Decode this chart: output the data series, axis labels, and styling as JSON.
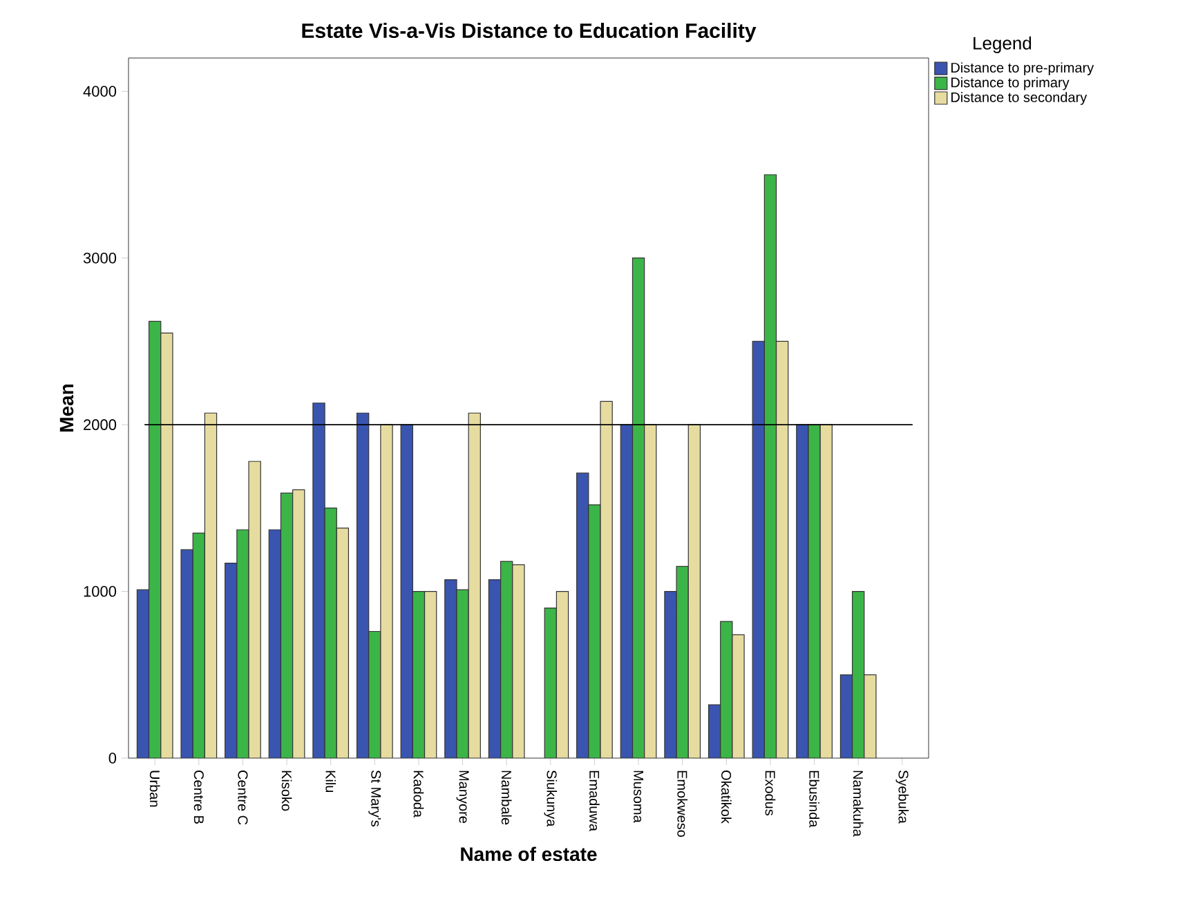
{
  "chart_data": {
    "type": "bar",
    "title": "Estate Vis-a-Vis Distance to Education Facility",
    "xlabel": "Name of estate",
    "ylabel": "Mean",
    "legend_title": "Legend",
    "legend": "top right",
    "categories": [
      "Urban",
      "Centre B",
      "Centre C",
      "Kisoko",
      "Kilu",
      "St Mary's",
      "Kadoda",
      "Manyore",
      "Nambale",
      "Siukunya",
      "Emaduwa",
      "Musoma",
      "Emokweso",
      "Okatikok",
      "Exodus",
      "Ebusinda",
      "Namakuha",
      "Syebuka"
    ],
    "series": [
      {
        "name": "Distance to pre-primary",
        "color": "#3a55b0",
        "values": [
          1010,
          1250,
          1170,
          1370,
          2130,
          2070,
          2000,
          1070,
          1070,
          null,
          1710,
          2000,
          1000,
          320,
          2500,
          2000,
          500,
          null
        ]
      },
      {
        "name": "Distance to primary",
        "color": "#3cb548",
        "values": [
          2620,
          1350,
          1370,
          1590,
          1500,
          760,
          1000,
          1010,
          1180,
          900,
          1520,
          3000,
          1150,
          820,
          3500,
          2000,
          1000,
          null
        ]
      },
      {
        "name": "Distance to secondary",
        "color": "#e6dca0",
        "values": [
          2550,
          2070,
          1780,
          1610,
          1380,
          2000,
          1000,
          2070,
          1160,
          1000,
          2140,
          2000,
          2000,
          740,
          2500,
          2000,
          500,
          null
        ]
      }
    ],
    "ylim": [
      0,
      4200
    ],
    "yticks": [
      0,
      1000,
      2000,
      3000,
      4000
    ],
    "ref_lines": [
      {
        "axis": "y",
        "value": 2000
      }
    ]
  }
}
